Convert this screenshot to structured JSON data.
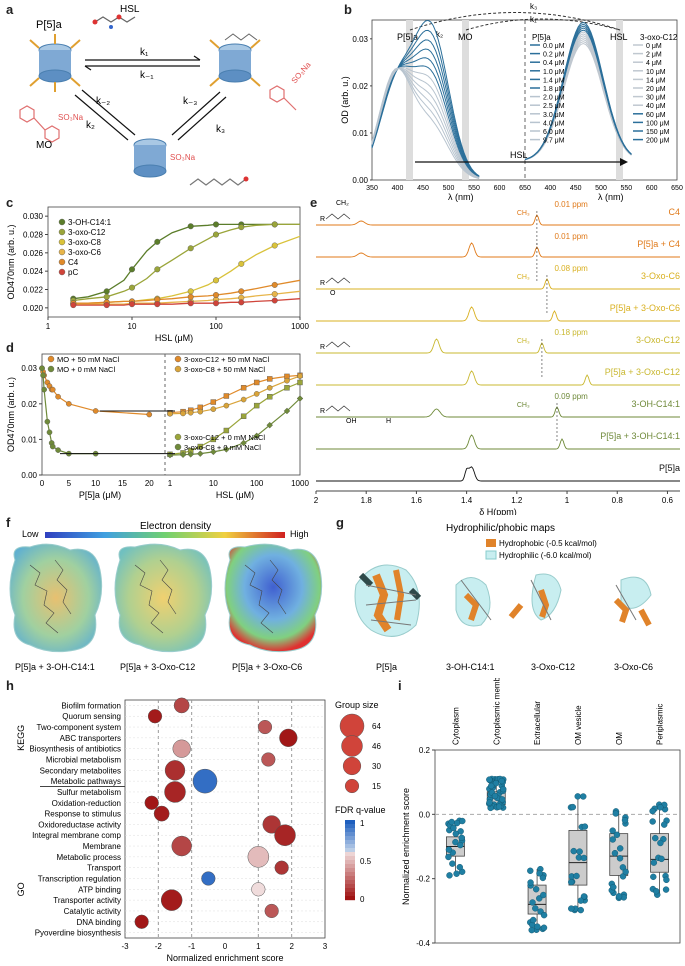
{
  "panel_labels": {
    "a": "a",
    "b": "b",
    "c": "c",
    "d": "d",
    "e": "e",
    "f": "f",
    "g": "g",
    "h": "h",
    "i": "i"
  },
  "colors": {
    "dark_green": "#5b7d2a",
    "olive": "#9aa53a",
    "yellow": "#d9c23a",
    "orange": "#e08a2a",
    "red": "#d0443a",
    "blue": "#2b6f9a",
    "teal": "#1f7fa3"
  },
  "panel_a": {
    "host": "P[5]a",
    "guest": "HSL",
    "dye": "MO",
    "dye_group": "SO₃Na",
    "k1": "k₁",
    "k_1": "k₋₁",
    "k2": "k₂",
    "k_2": "k₋₂",
    "k3": "k₃",
    "k_3": "k₋₃"
  },
  "panel_b": {
    "ylabel": "OD (arb. u.)",
    "xlabel_left": "λ (nm)",
    "xlabel_right": "λ (nm)",
    "yticks": [
      "0.00",
      "0.01",
      "0.02",
      "0.03"
    ],
    "xticks_left": [
      "350",
      "400",
      "450",
      "500",
      "550",
      "600",
      "650"
    ],
    "xticks_right": [
      "400",
      "450",
      "500",
      "550",
      "600",
      "650"
    ],
    "marker_p5a": "P[5]a",
    "marker_mo": "MO",
    "marker_hsl": "HSL",
    "k1": "k₁",
    "k2": "k₂",
    "k3": "k₃",
    "arrow_label": "HSL",
    "legend_left_title": "P[5]a",
    "legend_left": [
      "0.0 μM",
      "0.2 μM",
      "0.4 μM",
      "1.0 μM",
      "1.4 μM",
      "1.8 μM",
      "2.0 μM",
      "2.5 μM",
      "3.0 μM",
      "4.0 μM",
      "6.0 μM",
      "9.7 μM"
    ],
    "legend_right_title": "3-oxo-C12",
    "legend_right": [
      "0 μM",
      "2 μM",
      "4 μM",
      "10 μM",
      "14 μM",
      "20 μM",
      "30 μM",
      "40 μM",
      "60 μM",
      "100 μM",
      "150 μM",
      "200 μM"
    ]
  },
  "chart_data": [
    {
      "type": "line",
      "panel": "c",
      "title": "",
      "xlabel": "HSL (μM)",
      "ylabel": "OD470nm (arb. u.)",
      "xscale": "log",
      "xlim": [
        1,
        1000
      ],
      "ylim": [
        0.019,
        0.031
      ],
      "yticks": [
        "0.020",
        "0.022",
        "0.024",
        "0.026",
        "0.028",
        "0.030"
      ],
      "xticks": [
        "1",
        "10",
        "100",
        "1000"
      ],
      "series": [
        {
          "name": "3-OH-C14:1",
          "x": [
            2,
            3,
            5,
            8,
            10,
            15,
            20,
            30,
            50,
            80,
            100,
            150,
            200,
            300,
            500,
            1000
          ],
          "values": [
            0.021,
            0.0212,
            0.0218,
            0.023,
            0.0242,
            0.0262,
            0.0272,
            0.0282,
            0.0289,
            0.029,
            0.0291,
            0.0291,
            0.0291,
            0.0291,
            0.0291,
            0.0291
          ]
        },
        {
          "name": "3-oxo-C12",
          "x": [
            2,
            3,
            5,
            8,
            10,
            15,
            20,
            30,
            50,
            80,
            100,
            150,
            200,
            300,
            500,
            1000
          ],
          "values": [
            0.0208,
            0.021,
            0.0212,
            0.0218,
            0.0222,
            0.0232,
            0.0242,
            0.0252,
            0.0265,
            0.0275,
            0.028,
            0.0285,
            0.0288,
            0.029,
            0.0291,
            0.0291
          ]
        },
        {
          "name": "3-oxo-C8",
          "x": [
            2,
            3,
            5,
            8,
            10,
            15,
            20,
            30,
            50,
            80,
            100,
            150,
            200,
            300,
            500,
            1000
          ],
          "values": [
            0.0205,
            0.0205,
            0.0206,
            0.0207,
            0.0207,
            0.0209,
            0.021,
            0.0213,
            0.0218,
            0.0225,
            0.023,
            0.024,
            0.0248,
            0.0258,
            0.0268,
            0.0278
          ]
        },
        {
          "name": "3-oxo-C6",
          "x": [
            2,
            3,
            5,
            8,
            10,
            15,
            20,
            30,
            50,
            80,
            100,
            150,
            200,
            300,
            500,
            1000
          ],
          "values": [
            0.0204,
            0.0204,
            0.0204,
            0.0204,
            0.0205,
            0.0205,
            0.0205,
            0.0206,
            0.0207,
            0.0208,
            0.0209,
            0.021,
            0.0211,
            0.0213,
            0.0215,
            0.0218
          ]
        },
        {
          "name": "C4",
          "x": [
            2,
            3,
            5,
            8,
            10,
            15,
            20,
            30,
            50,
            80,
            100,
            150,
            200,
            300,
            500,
            1000
          ],
          "values": [
            0.0205,
            0.0205,
            0.0206,
            0.0207,
            0.0207,
            0.0208,
            0.0209,
            0.021,
            0.0212,
            0.0213,
            0.0214,
            0.0216,
            0.0218,
            0.0221,
            0.0225,
            0.023
          ]
        },
        {
          "name": "pC",
          "x": [
            2,
            3,
            5,
            8,
            10,
            15,
            20,
            30,
            50,
            80,
            100,
            150,
            200,
            300,
            500,
            1000
          ],
          "values": [
            0.0203,
            0.0203,
            0.0203,
            0.0203,
            0.0204,
            0.0204,
            0.0204,
            0.0204,
            0.0205,
            0.0205,
            0.0205,
            0.0206,
            0.0206,
            0.0207,
            0.0208,
            0.021
          ]
        }
      ]
    },
    {
      "type": "line",
      "panel": "d",
      "xlabel_left": "P[5]a (μM)",
      "xlabel_right": "HSL (μM)",
      "ylabel": "OD470nm (arb. u.)",
      "ylim": [
        0,
        0.034
      ],
      "yticks": [
        "0.00",
        "0.01",
        "0.02",
        "0.03"
      ],
      "xticks_left": [
        "0",
        "5",
        "10",
        "15",
        "20"
      ],
      "xticks_right": [
        "1",
        "10",
        "100",
        "1000"
      ],
      "series": [
        {
          "name": "MO + 50 mM NaCl",
          "x": [
            0,
            0.2,
            0.4,
            1,
            1.4,
            1.8,
            2,
            3,
            5,
            10,
            20
          ],
          "values": [
            0.03,
            0.029,
            0.028,
            0.026,
            0.025,
            0.024,
            0.024,
            0.022,
            0.02,
            0.018,
            0.017
          ]
        },
        {
          "name": "MO + 0 mM NaCl",
          "x": [
            0,
            0.2,
            0.4,
            1,
            1.4,
            1.8,
            2,
            3,
            5,
            10
          ],
          "values": [
            0.03,
            0.028,
            0.024,
            0.015,
            0.012,
            0.009,
            0.008,
            0.007,
            0.006,
            0.006
          ]
        },
        {
          "name": "3-oxo-C12 + 50 mM NaCl",
          "x": [
            1,
            2,
            3,
            5,
            10,
            20,
            50,
            100,
            200,
            500,
            1000
          ],
          "values": [
            0.0175,
            0.0178,
            0.0182,
            0.019,
            0.0205,
            0.0222,
            0.0245,
            0.026,
            0.027,
            0.0277,
            0.028
          ]
        },
        {
          "name": "3-oxo-C8 + 50 mM NaCl",
          "x": [
            1,
            2,
            3,
            5,
            10,
            20,
            50,
            100,
            200,
            500,
            1000
          ],
          "values": [
            0.0172,
            0.0173,
            0.0175,
            0.0178,
            0.0185,
            0.0195,
            0.0212,
            0.0228,
            0.0245,
            0.0265,
            0.0278
          ]
        },
        {
          "name": "3-oxo-C12 + 0 mM NaCl",
          "x": [
            1,
            2,
            3,
            5,
            10,
            20,
            50,
            100,
            200,
            500,
            1000
          ],
          "values": [
            0.0058,
            0.0062,
            0.0068,
            0.008,
            0.01,
            0.0125,
            0.0165,
            0.0195,
            0.022,
            0.0245,
            0.026
          ]
        },
        {
          "name": "3-oxo-C8 + 0 mM NaCl",
          "x": [
            1,
            2,
            3,
            5,
            10,
            20,
            50,
            100,
            200,
            500,
            1000
          ],
          "values": [
            0.0056,
            0.0057,
            0.0058,
            0.006,
            0.0065,
            0.0072,
            0.009,
            0.011,
            0.014,
            0.018,
            0.0215
          ]
        }
      ]
    },
    {
      "type": "scatter",
      "panel": "h",
      "xlabel": "Normalized enrichment score",
      "xlim": [
        -3,
        3
      ],
      "xticks": [
        "-3",
        "-2",
        "-1",
        "0",
        "1",
        "2",
        "3"
      ],
      "group_labels": {
        "kegg": "KEGG",
        "go": "GO"
      },
      "size_legend_title": "Group size",
      "size_legend": [
        "64",
        "46",
        "30",
        "15"
      ],
      "color_legend_title": "FDR q-value",
      "color_legend_ticks": [
        "1",
        "0.5",
        "0"
      ],
      "categories": [
        "Biofilm formation",
        "Quorum sensing",
        "Two-component system",
        "ABC transporters",
        "Biosynthesis of antibiotics",
        "Microbial metabolism",
        "Secondary metabolites",
        "Metabolic pathways",
        "Sulfur metabolism",
        "Oxidation-reduction",
        "Response to stimulus",
        "Oxidoreductase activity",
        "Integral membrane comp",
        "Membrane",
        "Metabolic process",
        "Transport",
        "Transcription regulation",
        "ATP binding",
        "Transporter activity",
        "Catalytic activity",
        "DNA binding",
        "Pyoverdine biosynthesis"
      ],
      "values": [
        -1.3,
        -2.1,
        1.2,
        1.9,
        -1.3,
        1.3,
        -1.5,
        -0.6,
        -1.5,
        -2.2,
        -1.9,
        1.4,
        1.8,
        -1.3,
        1.0,
        1.7,
        -0.5,
        1.0,
        -1.6,
        1.4,
        -2.5,
        null
      ],
      "group_size": [
        20,
        15,
        15,
        30,
        30,
        15,
        40,
        64,
        46,
        15,
        20,
        30,
        46,
        40,
        46,
        15,
        15,
        15,
        46,
        15,
        15,
        15
      ],
      "fdr_q": [
        0.15,
        0.02,
        0.2,
        0.01,
        0.4,
        0.2,
        0.08,
        0.95,
        0.05,
        0.01,
        0.02,
        0.1,
        0.05,
        0.15,
        0.5,
        0.1,
        0.95,
        0.6,
        0.02,
        0.2,
        0.01,
        0.1
      ]
    },
    {
      "type": "box",
      "panel": "i",
      "ylabel": "Normalized enrichment score",
      "ylim": [
        -0.4,
        0.2
      ],
      "yticks": [
        "-0.4",
        "-0.2",
        "0.0",
        "0.2"
      ],
      "categories": [
        "Cytoplasm",
        "Cytoplasmic membrane",
        "Extracellular",
        "OM vesicle",
        "OM",
        "Periplasmic"
      ],
      "median": [
        -0.1,
        0.05,
        -0.28,
        -0.15,
        -0.13,
        -0.14
      ],
      "q1": [
        -0.13,
        0.03,
        -0.31,
        -0.22,
        -0.19,
        -0.18
      ],
      "q3": [
        -0.07,
        0.07,
        -0.22,
        -0.05,
        -0.06,
        -0.06
      ],
      "min": [
        -0.19,
        0.02,
        -0.36,
        -0.3,
        -0.26,
        -0.25
      ],
      "max": [
        -0.02,
        0.11,
        -0.17,
        0.06,
        0.01,
        0.03
      ]
    }
  ],
  "panel_e": {
    "xlabel": "δ H(ppm)",
    "xticks": [
      "2",
      "1.8",
      "1.6",
      "1.4",
      "1.2",
      "1",
      "0.8",
      "0.6"
    ],
    "rows": [
      "C4",
      "P[5]a + C4",
      "3-Oxo-C6",
      "P[5]a + 3-Oxo-C6",
      "3-Oxo-C12",
      "P[5]a + 3-Oxo-C12",
      "3-OH-C14:1",
      "P[5]a + 3-OH-C14:1",
      "P[5]a"
    ],
    "shifts": [
      "0.01 ppm",
      "0.01 ppm",
      "0.08 ppm",
      "0.18 ppm",
      "0.09 ppm"
    ],
    "ch3": "CH₃",
    "ch2": "CH₂",
    "r": "R",
    "oh": "OH",
    "o": "O",
    "h": "H"
  },
  "panel_f": {
    "title": "Electron density",
    "low": "Low",
    "high": "High",
    "captions": [
      "P[5]a + 3-OH-C14:1",
      "P[5]a + 3-Oxo-C12",
      "P[5]a + 3-Oxo-C6"
    ]
  },
  "panel_g": {
    "title": "Hydrophilic/phobic maps",
    "legend_hydrophobic": "Hydrophobic (-0.5 kcal/mol)",
    "legend_hydrophilic": "Hydrophilic (-6.0 kcal/mol)",
    "captions": [
      "P[5]a",
      "3-OH-C14:1",
      "3-Oxo-C12",
      "3-Oxo-C6"
    ]
  }
}
